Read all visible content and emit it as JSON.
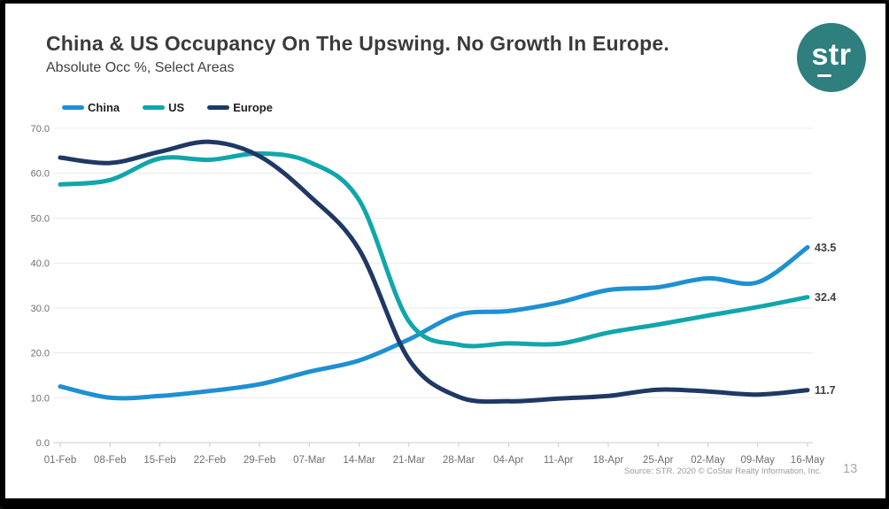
{
  "slide": {
    "title": "China & US Occupancy On The Upswing. No Growth In Europe.",
    "subtitle": "Absolute Occ %, Select Areas",
    "source": "Source: STR. 2020 © CoStar Realty Information, Inc.",
    "page_number": "13"
  },
  "logo": {
    "text": "str",
    "circle_color": "#2E7F7E"
  },
  "chart_data": {
    "type": "line",
    "title": "",
    "xlabel": "",
    "ylabel": "Absolute Occ %",
    "ylim": [
      0,
      70
    ],
    "ytick_step": 10,
    "ytick_labels": [
      "0.0",
      "10.0",
      "20.0",
      "30.0",
      "40.0",
      "50.0",
      "60.0",
      "70.0"
    ],
    "grid": "horizontal",
    "legend_position": "top-left",
    "categories": [
      "01-Feb",
      "08-Feb",
      "15-Feb",
      "22-Feb",
      "29-Feb",
      "07-Mar",
      "14-Mar",
      "21-Mar",
      "28-Mar",
      "04-Apr",
      "11-Apr",
      "18-Apr",
      "25-Apr",
      "02-May",
      "09-May",
      "16-May"
    ],
    "series": [
      {
        "name": "China",
        "color": "#1E90D2",
        "end_label": "43.5",
        "values": [
          12.5,
          10.0,
          10.4,
          11.5,
          13.0,
          15.8,
          18.3,
          23.0,
          28.5,
          29.3,
          31.2,
          34.0,
          34.6,
          36.6,
          35.7,
          43.5
        ]
      },
      {
        "name": "US",
        "color": "#10A6AC",
        "end_label": "32.4",
        "values": [
          57.5,
          58.5,
          63.3,
          63.0,
          64.4,
          62.5,
          54.0,
          27.0,
          21.8,
          22.1,
          22.0,
          24.5,
          26.3,
          28.3,
          30.2,
          32.4
        ]
      },
      {
        "name": "Europe",
        "color": "#1F3864",
        "end_label": "11.7",
        "values": [
          63.5,
          62.3,
          64.8,
          67.0,
          63.8,
          55.0,
          43.0,
          18.5,
          10.2,
          9.2,
          9.8,
          10.4,
          11.8,
          11.4,
          10.7,
          11.7
        ]
      }
    ]
  }
}
